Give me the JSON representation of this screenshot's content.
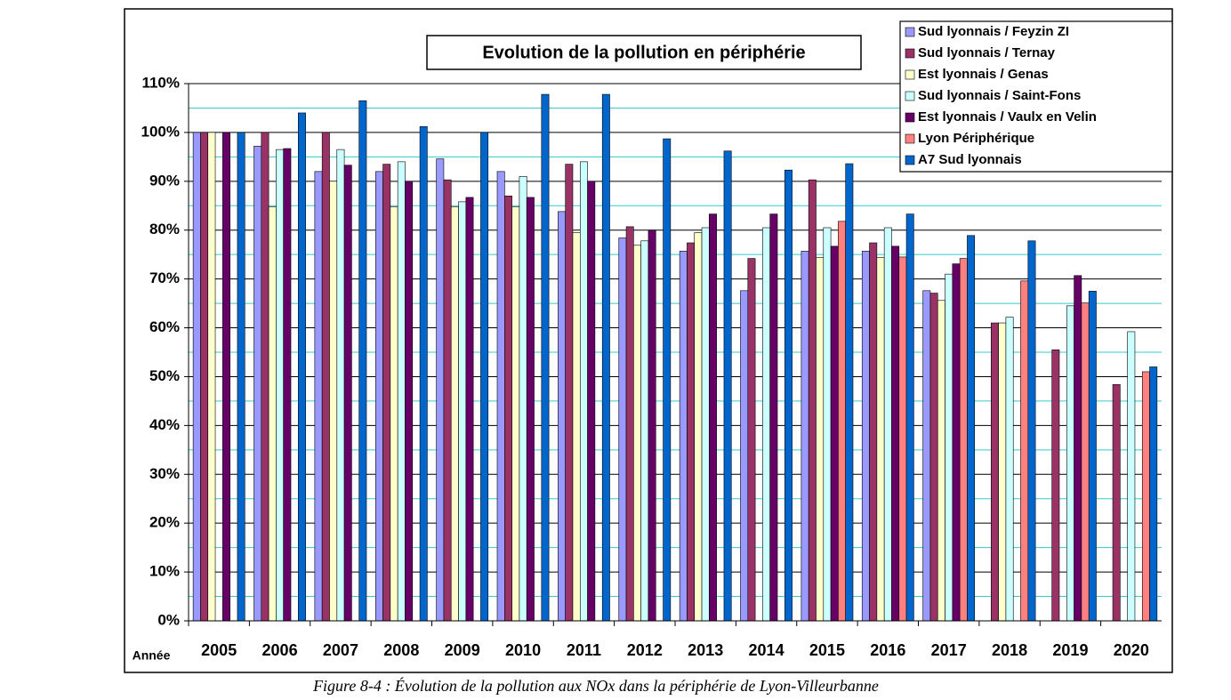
{
  "chart_data": {
    "type": "bar",
    "title": "Evolution de la pollution en périphérie",
    "x_label": "Année",
    "caption": "Figure 8-4 : Évolution de la pollution aux NOx dans la périphérie de Lyon-Villeurbanne",
    "categories": [
      "2005",
      "2006",
      "2007",
      "2008",
      "2009",
      "2010",
      "2011",
      "2012",
      "2013",
      "2014",
      "2015",
      "2016",
      "2017",
      "2018",
      "2019",
      "2020"
    ],
    "series": [
      {
        "name": "Sud lyonnais / Feyzin ZI",
        "color": "#9999ff",
        "values": [
          100,
          97.2,
          92,
          92,
          94.6,
          92,
          83.8,
          78.4,
          75.7,
          67.6,
          75.7,
          75.7,
          67.6,
          null,
          null,
          null
        ]
      },
      {
        "name": "Sud lyonnais / Ternay",
        "color": "#993366",
        "values": [
          100,
          100,
          100,
          93.5,
          90.3,
          87,
          93.5,
          80.7,
          77.4,
          74.2,
          90.3,
          77.4,
          67.1,
          61,
          55.5,
          48.4
        ]
      },
      {
        "name": "Est lyonnais / Genas",
        "color": "#ffffcc",
        "values": [
          100,
          84.8,
          90,
          84.8,
          84.8,
          84.8,
          79.5,
          76.9,
          79.5,
          null,
          74.4,
          74.4,
          65.6,
          61,
          null,
          null
        ]
      },
      {
        "name": "Sud lyonnais / Saint-Fons",
        "color": "#ccffff",
        "values": [
          null,
          96.5,
          96.5,
          94,
          85.8,
          91,
          94,
          77.8,
          80.5,
          80.5,
          80.5,
          80.5,
          71,
          62.2,
          64.5,
          59.2
        ]
      },
      {
        "name": "Est lyonnais / Vaulx en Velin",
        "color": "#660066",
        "values": [
          100,
          96.7,
          93.3,
          90,
          86.7,
          86.7,
          90,
          80,
          83.3,
          83.3,
          76.7,
          76.7,
          73.1,
          null,
          70.7,
          null
        ]
      },
      {
        "name": "Lyon Périphérique",
        "color": "#ff8080",
        "values": [
          null,
          null,
          null,
          null,
          null,
          null,
          null,
          null,
          null,
          null,
          81.8,
          74.5,
          74.2,
          69.6,
          65.1,
          51
        ]
      },
      {
        "name": "A7 Sud lyonnais",
        "color": "#0066cc",
        "values": [
          100,
          104,
          106.5,
          101.2,
          100,
          107.8,
          107.8,
          98.7,
          96.2,
          92.3,
          93.6,
          83.3,
          78.9,
          77.8,
          67.5,
          52
        ]
      }
    ],
    "ylim": [
      0,
      110
    ],
    "yticks": [
      {
        "value": 0,
        "label": "0%"
      },
      {
        "value": 10,
        "label": "10%"
      },
      {
        "value": 20,
        "label": "20%"
      },
      {
        "value": 30,
        "label": "30%"
      },
      {
        "value": 40,
        "label": "40%"
      },
      {
        "value": 50,
        "label": "50%"
      },
      {
        "value": 60,
        "label": "60%"
      },
      {
        "value": 70,
        "label": "70%"
      },
      {
        "value": 80,
        "label": "80%"
      },
      {
        "value": 90,
        "label": "90%"
      },
      {
        "value": 100,
        "label": "100%"
      },
      {
        "value": 110,
        "label": "110%"
      }
    ],
    "minor_yticks": [
      5,
      15,
      25,
      35,
      45,
      55,
      65,
      75,
      85,
      95,
      105
    ],
    "grid": true,
    "legend": "top-right"
  }
}
